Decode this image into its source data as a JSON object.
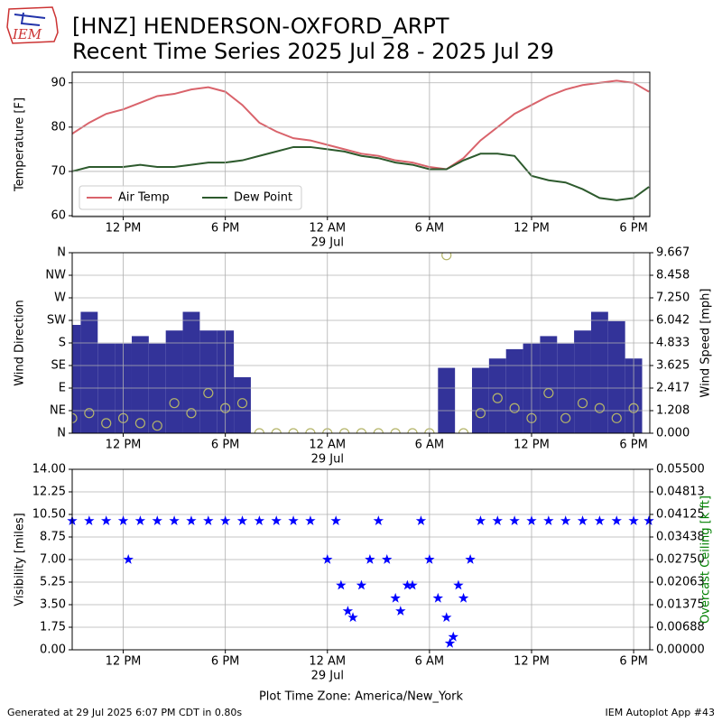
{
  "header": {
    "title1": "[HNZ] HENDERSON-OXFORD_ARPT",
    "title2": "Recent Time Series 2025 Jul 28 - 2025 Jul 29",
    "logo_text": "IEM"
  },
  "footer": {
    "left": "Generated at 29 Jul 2025 6:07 PM CDT in 0.80s",
    "right": "IEM Autoplot App #43"
  },
  "chart_data": [
    {
      "type": "line",
      "ylabel": "Temperature [F]",
      "xlim": [
        9.0,
        42.95
      ],
      "xticks": [
        {
          "value": 12,
          "label": "12 PM"
        },
        {
          "value": 18,
          "label": "6 PM"
        },
        {
          "value": 24,
          "label": "12 AM",
          "sublabel": "29 Jul"
        },
        {
          "value": 30,
          "label": "6 AM"
        },
        {
          "value": 36,
          "label": "12 PM"
        },
        {
          "value": 42,
          "label": "6 PM"
        }
      ],
      "ylim": [
        59.8,
        92.4
      ],
      "yticks": [
        60,
        70,
        80,
        90
      ],
      "grid": true,
      "legend": "lower left",
      "x": [
        9,
        10,
        11,
        12,
        13,
        14,
        15,
        16,
        17,
        18,
        19,
        20,
        21,
        22,
        23,
        24,
        25,
        26,
        27,
        28,
        29,
        30,
        31,
        32,
        33,
        34,
        35,
        36,
        37,
        38,
        39,
        40,
        41,
        42,
        42.9
      ],
      "series": [
        {
          "name": "Air Temp",
          "color": "#d9636b",
          "values": [
            78.5,
            81,
            83,
            84,
            85.5,
            87,
            87.5,
            88.5,
            89,
            88,
            85,
            81,
            79,
            77.5,
            77,
            76,
            75,
            74,
            73.5,
            72.5,
            72,
            71,
            70.5,
            73,
            77,
            80,
            83,
            85,
            87,
            88.5,
            89.5,
            90,
            90.5,
            90,
            88
          ]
        },
        {
          "name": "Dew Point",
          "color": "#2d5a2d",
          "values": [
            70,
            71,
            71,
            71,
            71.5,
            71,
            71,
            71.5,
            72,
            72,
            72.5,
            73.5,
            74.5,
            75.5,
            75.5,
            75,
            74.5,
            73.5,
            73,
            72,
            71.5,
            70.5,
            70.5,
            72.5,
            74,
            74,
            73.5,
            69,
            68,
            67.5,
            66,
            64,
            63.5,
            64,
            66.5
          ]
        }
      ]
    },
    {
      "type": "combo",
      "ylabel": "Wind Direction",
      "y2label": "Wind Speed [mph]",
      "xlim": [
        9.0,
        42.95
      ],
      "xticks": [
        {
          "value": 12,
          "label": "12 PM"
        },
        {
          "value": 18,
          "label": "6 PM"
        },
        {
          "value": 24,
          "label": "12 AM",
          "sublabel": "29 Jul"
        },
        {
          "value": 30,
          "label": "6 AM"
        },
        {
          "value": 36,
          "label": "12 PM"
        },
        {
          "value": 42,
          "label": "6 PM"
        }
      ],
      "ylim": [
        0,
        360
      ],
      "yticks": [
        {
          "value": 0,
          "label": "N"
        },
        {
          "value": 45,
          "label": "NE"
        },
        {
          "value": 90,
          "label": "E"
        },
        {
          "value": 135,
          "label": "SE"
        },
        {
          "value": 180,
          "label": "S"
        },
        {
          "value": 225,
          "label": "SW"
        },
        {
          "value": 270,
          "label": "W"
        },
        {
          "value": 315,
          "label": "NW"
        },
        {
          "value": 360,
          "label": "N"
        }
      ],
      "y2lim": [
        0,
        9.667
      ],
      "y2ticks": [
        {
          "value": 0,
          "label": "0.000"
        },
        {
          "value": 1.208,
          "label": "1.208"
        },
        {
          "value": 2.417,
          "label": "2.417"
        },
        {
          "value": 3.625,
          "label": "3.625"
        },
        {
          "value": 4.833,
          "label": "4.833"
        },
        {
          "value": 6.042,
          "label": "6.042"
        },
        {
          "value": 7.25,
          "label": "7.250"
        },
        {
          "value": 8.458,
          "label": "8.458"
        },
        {
          "value": 9.667,
          "label": "9.667"
        }
      ],
      "grid": true,
      "x": [
        9,
        10,
        11,
        12,
        13,
        14,
        15,
        16,
        17,
        18,
        19,
        20,
        21,
        22,
        23,
        24,
        25,
        26,
        27,
        28,
        29,
        30,
        31,
        32,
        33,
        34,
        35,
        36,
        37,
        38,
        39,
        40,
        41,
        42
      ],
      "series": [
        {
          "kind": "bar",
          "axis": "y2",
          "color": "#333399",
          "values": [
            5.8,
            6.5,
            4.8,
            4.8,
            5.2,
            4.8,
            5.5,
            6.5,
            5.5,
            5.5,
            3.0,
            0,
            0,
            0,
            0,
            0,
            0,
            0,
            0,
            0,
            0,
            0,
            3.5,
            0,
            3.5,
            4.0,
            4.5,
            4.8,
            5.2,
            4.8,
            5.5,
            6.5,
            6.0,
            4.0
          ]
        },
        {
          "kind": "scatter",
          "axis": "y",
          "color": "#b5b56a",
          "values": [
            30,
            40,
            20,
            30,
            20,
            15,
            60,
            40,
            80,
            50,
            60,
            0,
            0,
            0,
            0,
            0,
            0,
            0,
            0,
            0,
            0,
            0,
            355,
            0,
            40,
            70,
            50,
            30,
            80,
            30,
            60,
            50,
            30,
            50
          ]
        }
      ]
    },
    {
      "type": "scatter",
      "ylabel": "Visibility [miles]",
      "y2label": "Overcast Ceiling [k ft]",
      "y2color": "#008000",
      "xlabel": "Plot Time Zone: America/New_York",
      "xlim": [
        9.0,
        42.95
      ],
      "xticks": [
        {
          "value": 12,
          "label": "12 PM"
        },
        {
          "value": 18,
          "label": "6 PM"
        },
        {
          "value": 24,
          "label": "12 AM",
          "sublabel": "29 Jul"
        },
        {
          "value": 30,
          "label": "6 AM"
        },
        {
          "value": 36,
          "label": "12 PM"
        },
        {
          "value": 42,
          "label": "6 PM"
        }
      ],
      "ylim": [
        0,
        14
      ],
      "yticks": [
        {
          "value": 0,
          "label": "0.00"
        },
        {
          "value": 1.75,
          "label": "1.75"
        },
        {
          "value": 3.5,
          "label": "3.50"
        },
        {
          "value": 5.25,
          "label": "5.25"
        },
        {
          "value": 7,
          "label": "7.00"
        },
        {
          "value": 8.75,
          "label": "8.75"
        },
        {
          "value": 10.5,
          "label": "10.50"
        },
        {
          "value": 12.25,
          "label": "12.25"
        },
        {
          "value": 14,
          "label": "14.00"
        }
      ],
      "y2lim": [
        0,
        0.055
      ],
      "y2ticks": [
        {
          "value": 0,
          "label": "0.00000"
        },
        {
          "value": 0.006875,
          "label": "0.00688"
        },
        {
          "value": 0.01375,
          "label": "0.01375"
        },
        {
          "value": 0.020625,
          "label": "0.02063"
        },
        {
          "value": 0.0275,
          "label": "0.02750"
        },
        {
          "value": 0.034375,
          "label": "0.03438"
        },
        {
          "value": 0.04125,
          "label": "0.04125"
        },
        {
          "value": 0.048125,
          "label": "0.04813"
        },
        {
          "value": 0.055,
          "label": "0.05500"
        }
      ],
      "grid": true,
      "x": [
        9,
        10,
        11,
        12,
        12.3,
        13,
        14,
        15,
        16,
        17,
        18,
        19,
        20,
        21,
        22,
        23,
        24,
        24.5,
        24.8,
        25.2,
        25.5,
        26,
        26.5,
        27,
        27.5,
        28,
        28.3,
        28.7,
        29,
        29.5,
        30,
        30.5,
        31,
        31.2,
        31.4,
        31.7,
        32,
        32.4,
        33,
        34,
        35,
        36,
        37,
        38,
        39,
        40,
        41,
        42,
        42.9
      ],
      "series": [
        {
          "color": "#0000ff",
          "values": [
            10,
            10,
            10,
            10,
            7,
            10,
            10,
            10,
            10,
            10,
            10,
            10,
            10,
            10,
            10,
            10,
            7,
            10,
            5,
            3,
            2.5,
            5,
            7,
            10,
            7,
            4,
            3,
            5,
            5,
            10,
            7,
            4,
            2.5,
            0.5,
            1,
            5,
            4,
            7,
            10,
            10,
            10,
            10,
            10,
            10,
            10,
            10,
            10,
            10,
            10
          ]
        }
      ]
    }
  ]
}
